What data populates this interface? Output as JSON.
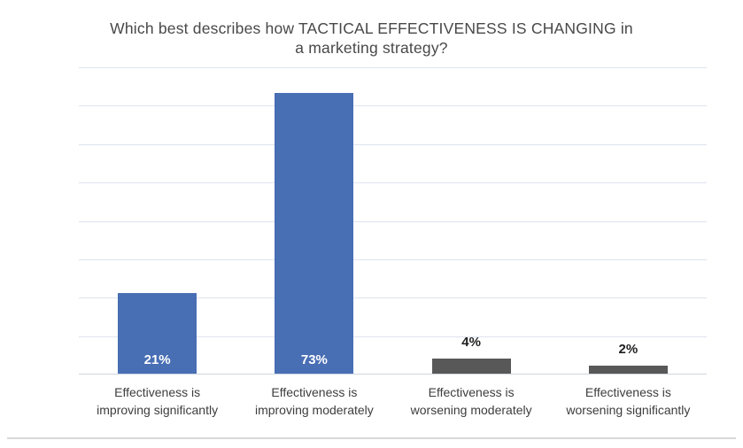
{
  "colors": {
    "bar_blue": "#486eb4",
    "bar_gray": "#585858",
    "gridline": "#dde3ee",
    "axis_line": "#cfd5e0",
    "title_text": "#484848",
    "category_text": "#3d3d3d",
    "divider": "#d9d9d9",
    "data_label_on_blue": "#ffffff",
    "data_label_on_white": "#1f1f1f"
  },
  "chart_data": {
    "type": "bar",
    "title": "Which best describes how TACTICAL EFFECTIVENESS IS CHANGING in a marketing strategy?",
    "title_lines": [
      "Which best describes how TACTICAL EFFECTIVENESS IS CHANGING in",
      "a marketing strategy?"
    ],
    "categories": [
      "Effectiveness is improving significantly",
      "Effectiveness is improving moderately",
      "Effectiveness is worsening moderately",
      "Effectiveness is worsening significantly"
    ],
    "category_lines": [
      [
        "Effectiveness is",
        "improving significantly"
      ],
      [
        "Effectiveness is",
        "improving moderately"
      ],
      [
        "Effectiveness is",
        "worsening moderately"
      ],
      [
        "Effectiveness is",
        "worsening significantly"
      ]
    ],
    "values": [
      21,
      73,
      4,
      2
    ],
    "data_labels": [
      "21%",
      "73%",
      "4%",
      "2%"
    ],
    "bar_colors": [
      "#486eb4",
      "#486eb4",
      "#585858",
      "#585858"
    ],
    "data_label_colors": [
      "#ffffff",
      "#ffffff",
      "#1f1f1f",
      "#1f1f1f"
    ],
    "data_label_positions": [
      "inside-bottom",
      "inside-bottom",
      "above",
      "above"
    ],
    "xlabel": "",
    "ylabel": "",
    "ylim": [
      0,
      80
    ],
    "gridline_step": 10,
    "grid": true,
    "y_axis_tick_labels_visible": false,
    "legend": "none"
  }
}
